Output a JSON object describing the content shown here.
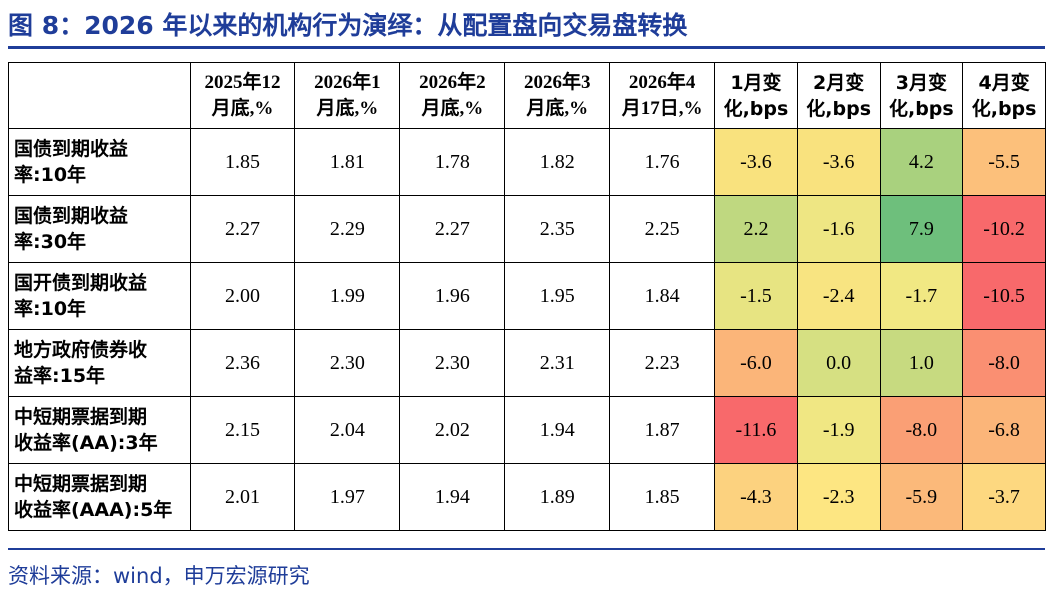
{
  "title": "图 8：2026 年以来的机构行为演绎：从配置盘向交易盘转换",
  "source": "资料来源：wind，申万宏源研究",
  "chart_data": {
    "type": "table",
    "title": "图 8：2026 年以来的机构行为演绎：从配置盘向交易盘转换",
    "columns": [
      {
        "line1": "2025年12",
        "line2": "月底,%"
      },
      {
        "line1": "2026年1",
        "line2": "月底,%"
      },
      {
        "line1": "2026年2",
        "line2": "月底,%"
      },
      {
        "line1": "2026年3",
        "line2": "月底,%"
      },
      {
        "line1": "2026年4",
        "line2": "月17日,%"
      },
      {
        "line1": "1月变",
        "line2": "化,bps"
      },
      {
        "line1": "2月变",
        "line2": "化,bps"
      },
      {
        "line1": "3月变",
        "line2": "化,bps"
      },
      {
        "line1": "4月变",
        "line2": "化,bps"
      }
    ],
    "rows": [
      {
        "label1": "国债到期收益",
        "label2": "率:10年",
        "values": [
          "1.85",
          "1.81",
          "1.78",
          "1.82",
          "1.76",
          "-3.6",
          "-3.6",
          "4.2",
          "-5.5"
        ]
      },
      {
        "label1": "国债到期收益",
        "label2": "率:30年",
        "values": [
          "2.27",
          "2.29",
          "2.27",
          "2.35",
          "2.25",
          "2.2",
          "-1.6",
          "7.9",
          "-10.2"
        ]
      },
      {
        "label1": "国开债到期收益",
        "label2": "率:10年",
        "values": [
          "2.00",
          "1.99",
          "1.96",
          "1.95",
          "1.84",
          "-1.5",
          "-2.4",
          "-1.7",
          "-10.5"
        ]
      },
      {
        "label1": "地方政府债券收",
        "label2": "益率:15年",
        "values": [
          "2.36",
          "2.30",
          "2.30",
          "2.31",
          "2.23",
          "-6.0",
          "0.0",
          "1.0",
          "-8.0"
        ]
      },
      {
        "label1": "中短期票据到期",
        "label2": "收益率(AA):3年",
        "values": [
          "2.15",
          "2.04",
          "2.02",
          "1.94",
          "1.87",
          "-11.6",
          "-1.9",
          "-8.0",
          "-6.8"
        ]
      },
      {
        "label1": "中短期票据到期",
        "label2": "收益率(AAA):5年",
        "values": [
          "2.01",
          "1.97",
          "1.94",
          "1.89",
          "1.85",
          "-4.3",
          "-2.3",
          "-5.9",
          "-3.7"
        ]
      }
    ],
    "heatmap_colors": [
      [
        "#f9e27e",
        "#f9e27e",
        "#a9d17e",
        "#fcc07b"
      ],
      [
        "#bfd880",
        "#eee683",
        "#6ebf7c",
        "#f8696b"
      ],
      [
        "#e7e482",
        "#f8e481",
        "#f1e883",
        "#f8696b"
      ],
      [
        "#fbb579",
        "#d6e082",
        "#c7da80",
        "#fa8f72"
      ],
      [
        "#f8696b",
        "#f0e783",
        "#fa9f75",
        "#fbb579"
      ],
      [
        "#fcd27f",
        "#fde682",
        "#fbb97a",
        "#fdd880"
      ]
    ]
  }
}
